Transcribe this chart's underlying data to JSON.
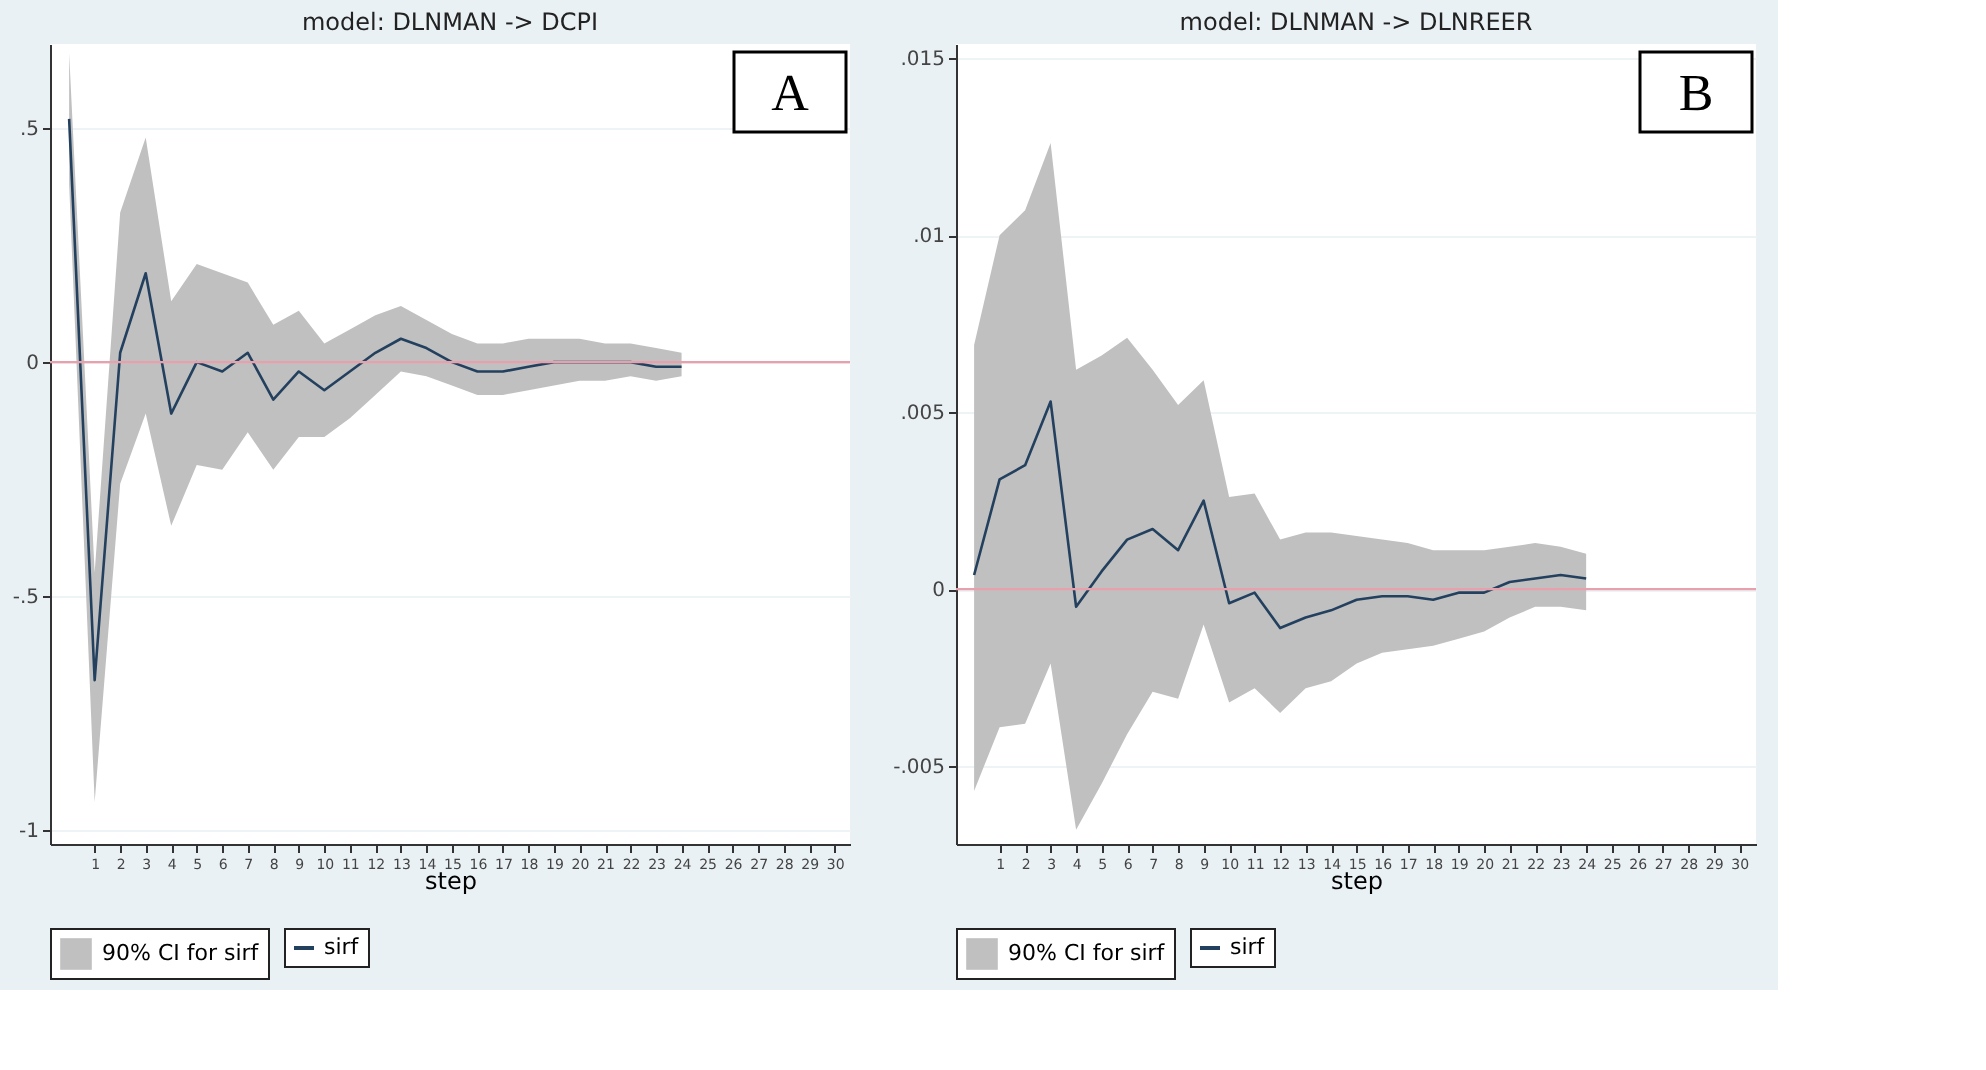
{
  "chart_data": [
    {
      "type": "line",
      "title": "model: DLNMAN -> DCPI",
      "xlabel": "step",
      "x": [
        0,
        1,
        2,
        3,
        4,
        5,
        6,
        7,
        8,
        9,
        10,
        11,
        12,
        13,
        14,
        15,
        16,
        17,
        18,
        19,
        20,
        21,
        22,
        23,
        24
      ],
      "series": [
        {
          "name": "sirf",
          "color": "#23405e",
          "values": [
            0.52,
            -0.68,
            0.02,
            0.19,
            -0.11,
            0.0,
            -0.02,
            0.02,
            -0.08,
            -0.02,
            -0.06,
            -0.02,
            0.02,
            0.05,
            0.03,
            0.0,
            -0.02,
            -0.02,
            -0.01,
            0.0,
            0.0,
            0.0,
            0.0,
            -0.01,
            -0.01
          ],
          "upper": [
            0.66,
            -0.45,
            0.32,
            0.48,
            0.13,
            0.21,
            0.19,
            0.17,
            0.08,
            0.11,
            0.04,
            0.07,
            0.1,
            0.12,
            0.09,
            0.06,
            0.04,
            0.04,
            0.05,
            0.05,
            0.05,
            0.04,
            0.04,
            0.03,
            0.02
          ],
          "lower": [
            0.38,
            -0.94,
            -0.26,
            -0.11,
            -0.35,
            -0.22,
            -0.23,
            -0.15,
            -0.23,
            -0.16,
            -0.16,
            -0.12,
            -0.07,
            -0.02,
            -0.03,
            -0.05,
            -0.07,
            -0.07,
            -0.06,
            -0.05,
            -0.04,
            -0.04,
            -0.03,
            -0.04,
            -0.03
          ]
        }
      ],
      "xlim": [
        -0.75,
        30.6
      ],
      "xticks": [
        1,
        2,
        3,
        4,
        5,
        6,
        7,
        8,
        9,
        10,
        11,
        12,
        13,
        14,
        15,
        16,
        17,
        18,
        19,
        20,
        21,
        22,
        23,
        24,
        25,
        26,
        27,
        28,
        29,
        30
      ],
      "ylim": [
        -1.03,
        0.68
      ],
      "yticks": [
        {
          "value": -1,
          "label": "-1"
        },
        {
          "value": -0.5,
          "label": "-.5"
        },
        {
          "value": 0,
          "label": "0"
        },
        {
          "value": 0.5,
          "label": ".5"
        }
      ],
      "ref_lines": [
        {
          "axis": "y",
          "value": 0,
          "color": "#e8a0ac"
        }
      ],
      "grid": "y",
      "legend": "bottom",
      "annotations": [
        "A",
        "90% CI for sirf"
      ]
    },
    {
      "type": "line",
      "title": "model: DLNMAN -> DLNREER",
      "xlabel": "step",
      "x": [
        0,
        1,
        2,
        3,
        4,
        5,
        6,
        7,
        8,
        9,
        10,
        11,
        12,
        13,
        14,
        15,
        16,
        17,
        18,
        19,
        20,
        21,
        22,
        23,
        24
      ],
      "series": [
        {
          "name": "sirf",
          "color": "#23405e",
          "values": [
            0.0004,
            0.0031,
            0.0035,
            0.0053,
            -0.0005,
            0.0005,
            0.0014,
            0.0017,
            0.0011,
            0.0025,
            -0.0004,
            -0.0001,
            -0.0011,
            -0.0008,
            -0.0006,
            -0.0003,
            -0.0002,
            -0.0002,
            -0.0003,
            -0.0001,
            -0.0001,
            0.0002,
            0.0003,
            0.0004,
            0.0003
          ],
          "upper": [
            0.0069,
            0.01,
            0.0107,
            0.0126,
            0.0062,
            0.0066,
            0.0071,
            0.0062,
            0.0052,
            0.0059,
            0.0026,
            0.0027,
            0.0014,
            0.0016,
            0.0016,
            0.0015,
            0.0014,
            0.0013,
            0.0011,
            0.0011,
            0.0011,
            0.0012,
            0.0013,
            0.0012,
            0.001
          ],
          "lower": [
            -0.0057,
            -0.0039,
            -0.0038,
            -0.0021,
            -0.0068,
            -0.0055,
            -0.0041,
            -0.0029,
            -0.0031,
            -0.001,
            -0.0032,
            -0.0028,
            -0.0035,
            -0.0028,
            -0.0026,
            -0.0021,
            -0.0018,
            -0.0017,
            -0.0016,
            -0.0014,
            -0.0012,
            -0.0008,
            -0.0005,
            -0.0005,
            -0.0006
          ]
        }
      ],
      "xlim": [
        -0.71,
        30.66
      ],
      "xticks": [
        1,
        2,
        3,
        4,
        5,
        6,
        7,
        8,
        9,
        10,
        11,
        12,
        13,
        14,
        15,
        16,
        17,
        18,
        19,
        20,
        21,
        22,
        23,
        24,
        25,
        26,
        27,
        28,
        29,
        30
      ],
      "ylim": [
        -0.0072,
        0.0154
      ],
      "yticks": [
        {
          "value": -0.005,
          "label": "-.005"
        },
        {
          "value": 0,
          "label": "0"
        },
        {
          "value": 0.005,
          "label": ".005"
        },
        {
          "value": 0.01,
          "label": ".01"
        },
        {
          "value": 0.015,
          "label": ".015"
        }
      ],
      "ref_lines": [
        {
          "axis": "y",
          "value": 0,
          "color": "#e8a0ac"
        }
      ],
      "grid": "y",
      "legend": "bottom",
      "annotations": [
        "B",
        "90% CI for sirf"
      ]
    }
  ]
}
